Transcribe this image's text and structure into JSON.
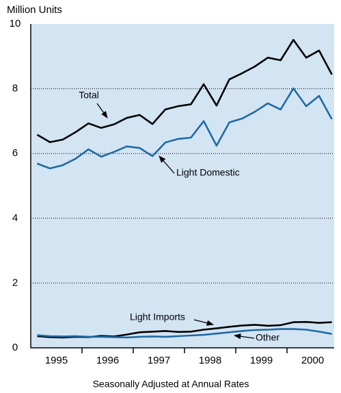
{
  "chart_data": {
    "type": "line",
    "y_axis_label": "Million Units",
    "x_axis_label": "Seasonally Adjusted at Annual Rates",
    "x": [
      1995.125,
      1995.375,
      1995.625,
      1995.875,
      1996.125,
      1996.375,
      1996.625,
      1996.875,
      1997.125,
      1997.375,
      1997.625,
      1997.875,
      1998.125,
      1998.375,
      1998.625,
      1998.875,
      1999.125,
      1999.375,
      1999.625,
      1999.875,
      2000.125,
      2000.375,
      2000.625,
      2000.875
    ],
    "series": [
      {
        "name": "Total",
        "color": "#000000",
        "values": [
          6.58,
          6.35,
          6.43,
          6.66,
          6.93,
          6.79,
          6.9,
          7.1,
          7.19,
          6.91,
          7.36,
          7.46,
          7.52,
          8.14,
          7.48,
          8.29,
          8.48,
          8.69,
          8.96,
          8.88,
          9.51,
          8.96,
          9.18,
          8.44
        ]
      },
      {
        "name": "Light Domestic",
        "color": "#1f6aa5",
        "values": [
          5.69,
          5.54,
          5.64,
          5.84,
          6.13,
          5.9,
          6.05,
          6.22,
          6.17,
          5.92,
          6.34,
          6.45,
          6.49,
          7.0,
          6.24,
          6.96,
          7.08,
          7.29,
          7.55,
          7.36,
          8.01,
          7.46,
          7.78,
          7.06
        ]
      },
      {
        "name": "Light Imports",
        "color": "#000000",
        "values": [
          0.36,
          0.33,
          0.32,
          0.34,
          0.33,
          0.37,
          0.35,
          0.41,
          0.48,
          0.5,
          0.52,
          0.49,
          0.5,
          0.56,
          0.6,
          0.65,
          0.69,
          0.71,
          0.68,
          0.7,
          0.79,
          0.8,
          0.77,
          0.79
        ]
      },
      {
        "name": "Other",
        "color": "#1f6aa5",
        "values": [
          0.39,
          0.36,
          0.35,
          0.36,
          0.34,
          0.34,
          0.33,
          0.32,
          0.34,
          0.35,
          0.34,
          0.36,
          0.38,
          0.4,
          0.44,
          0.48,
          0.52,
          0.55,
          0.56,
          0.58,
          0.58,
          0.56,
          0.5,
          0.43
        ]
      }
    ],
    "xlim": [
      1995,
      2000.92
    ],
    "xticks": [
      {
        "value": 1995.5,
        "label": "1995"
      },
      {
        "value": 1996.5,
        "label": "1996"
      },
      {
        "value": 1997.5,
        "label": "1997"
      },
      {
        "value": 1998.5,
        "label": "1998"
      },
      {
        "value": 1999.5,
        "label": "1999"
      },
      {
        "value": 2000.5,
        "label": "2000"
      }
    ],
    "xtick_marks": [
      1996,
      1997,
      1998,
      1999,
      2000
    ],
    "ylim": [
      0,
      10
    ],
    "yticks": [
      0,
      2,
      4,
      6,
      8,
      10
    ],
    "grid": true,
    "background": "#d3e4f3"
  }
}
